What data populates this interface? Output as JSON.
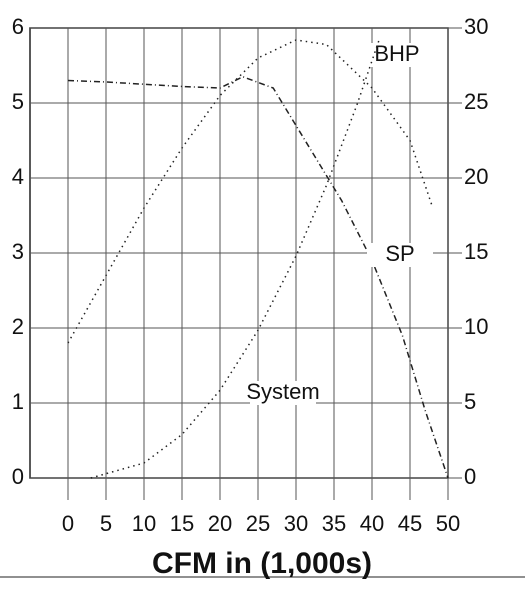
{
  "chart_data": {
    "type": "line",
    "x_label": "CFM in (1,000s)",
    "xlim": [
      -5,
      50
    ],
    "xticks": [
      0,
      5,
      10,
      15,
      20,
      25,
      30,
      35,
      40,
      45,
      50
    ],
    "ylim": [
      0,
      6
    ],
    "yticks": [
      0,
      1,
      2,
      3,
      4,
      5,
      6
    ],
    "y2lim": [
      0,
      30
    ],
    "y2ticks": [
      0,
      5,
      10,
      15,
      20,
      25,
      30
    ],
    "grid": true,
    "series": [
      {
        "name": "SP",
        "color": "#222222",
        "dash": "6 3 1 3",
        "x": [
          0,
          5,
          10,
          15,
          20,
          23,
          27,
          30,
          33,
          36,
          40,
          44,
          47,
          50
        ],
        "values": [
          5.3,
          5.28,
          5.25,
          5.22,
          5.2,
          5.35,
          5.2,
          4.7,
          4.2,
          3.7,
          2.9,
          1.9,
          0.9,
          0
        ]
      },
      {
        "name": "BHP",
        "color": "#222222",
        "dash": "1.5 4",
        "axis": "y2",
        "x": [
          0,
          5,
          10,
          15,
          20,
          25,
          30,
          34,
          40,
          45,
          48
        ],
        "values": [
          9,
          13.5,
          18,
          22,
          25.5,
          28,
          29.2,
          28.9,
          26,
          22.5,
          18
        ]
      },
      {
        "name": "System",
        "color": "#222222",
        "dash": "1.5 4",
        "x": [
          3,
          10,
          15,
          20,
          25,
          30,
          34,
          38,
          41
        ],
        "values": [
          0,
          0.2,
          0.58,
          1.17,
          1.97,
          2.96,
          3.9,
          4.97,
          5.86
        ]
      }
    ]
  }
}
